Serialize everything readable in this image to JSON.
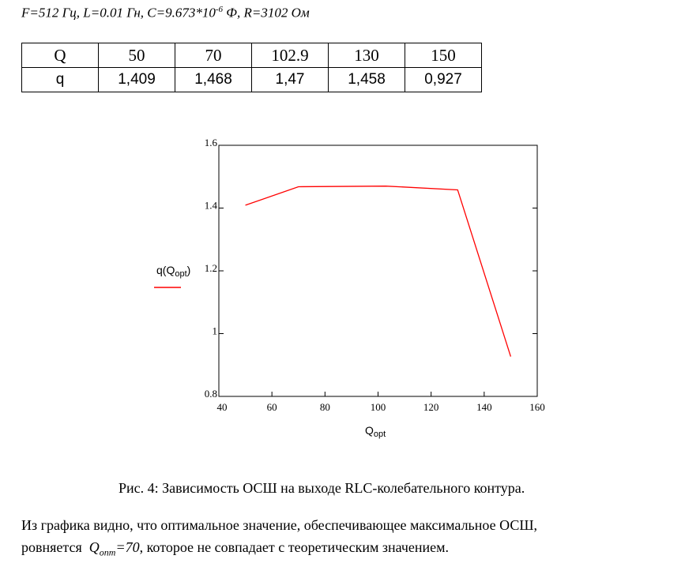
{
  "header": {
    "parts": [
      "F=512 Гц, L=0.01 Гн, C=9.673*10",
      "-6",
      " Ф, R=3102 Ом"
    ]
  },
  "table": {
    "rows": [
      [
        "Q",
        "50",
        "70",
        "102.9",
        "130",
        "150"
      ],
      [
        "q",
        "1,409",
        "1,468",
        "1,47",
        "1,458",
        "0,927"
      ]
    ]
  },
  "chart_data": {
    "type": "line",
    "x_label": [
      "Q",
      "opt"
    ],
    "y_label": [
      "q(Q",
      "opt",
      ")"
    ],
    "x": [
      50,
      70,
      102.9,
      130,
      150
    ],
    "values": [
      1.409,
      1.468,
      1.47,
      1.458,
      0.927
    ],
    "color": "#ff0000",
    "xlim": [
      40,
      160
    ],
    "xticks": [
      40,
      60,
      80,
      100,
      120,
      140,
      160
    ],
    "ylim": [
      0.8,
      1.6
    ],
    "yticks": [
      0.8,
      1,
      1.2,
      1.4,
      1.6
    ]
  },
  "caption": "Рис. 4: Зависимость ОСШ на выходе RLC-колебательного контура.",
  "paragraph": {
    "line1": "Из графика видно, что оптимальное значение, обеспечивающее максимальное ОСШ,",
    "line2": [
      "ровняется",
      "Q",
      "опт",
      "=70",
      ", которое не совпадает с теоретическим значением."
    ]
  }
}
